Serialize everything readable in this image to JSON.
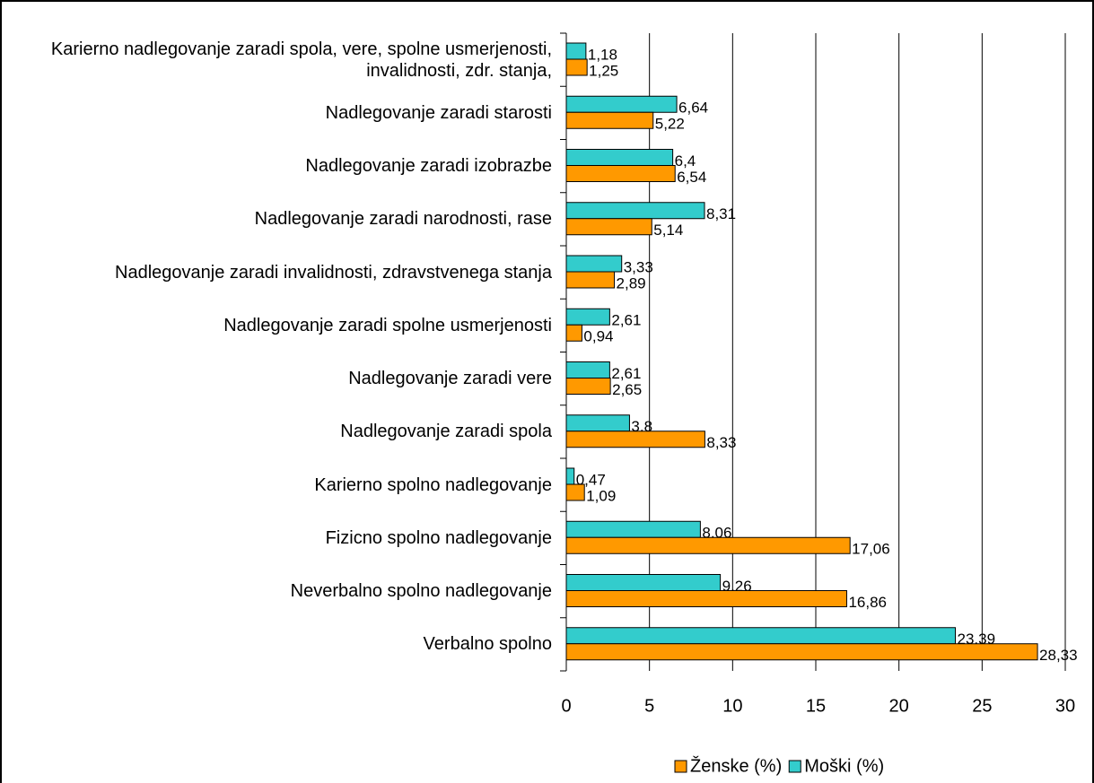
{
  "chart_data": {
    "type": "barh",
    "categories": [
      "Karierno nadlegovanje zaradi spola, vere, spolne usmerjenosti, invalidnosti, zdr. stanja,",
      "Nadlegovanje zaradi starosti",
      "Nadlegovanje zaradi izobrazbe",
      "Nadlegovanje zaradi narodnosti, rase",
      "Nadlegovanje zaradi invalidnosti, zdravstvenega stanja",
      "Nadlegovanje zaradi spolne usmerjenosti",
      "Nadlegovanje zaradi vere",
      "Nadlegovanje zaradi spola",
      "Karierno spolno nadlegovanje",
      "Fizicno spolno nadlegovanje",
      "Neverbalno spolno nadlegovanje",
      "Verbalno spolno"
    ],
    "series": [
      {
        "name": "Ženske (%)",
        "color": "#ff9900",
        "values": [
          1.25,
          5.22,
          6.54,
          5.14,
          2.89,
          0.94,
          2.65,
          8.33,
          1.09,
          17.06,
          16.86,
          28.33
        ],
        "value_labels": [
          "1,25",
          "5,22",
          "6,54",
          "5,14",
          "2,89",
          "0,94",
          "2,65",
          "8,33",
          "1,09",
          "17,06",
          "16,86",
          "28,33"
        ]
      },
      {
        "name": "Moški (%)",
        "color": "#33cccc",
        "values": [
          1.18,
          6.64,
          6.4,
          8.31,
          3.33,
          2.61,
          2.61,
          3.8,
          0.47,
          8.06,
          9.26,
          23.39
        ],
        "value_labels": [
          "1,18",
          "6,64",
          "6,4",
          "8,31",
          "3,33",
          "2,61",
          "2,61",
          "3,8",
          "0,47",
          "8,06",
          "9,26",
          "23,39"
        ]
      }
    ],
    "xlim": [
      0,
      30
    ],
    "xticks": [
      0,
      5,
      10,
      15,
      20,
      25,
      30
    ],
    "grid": true,
    "legend": "bottom"
  }
}
